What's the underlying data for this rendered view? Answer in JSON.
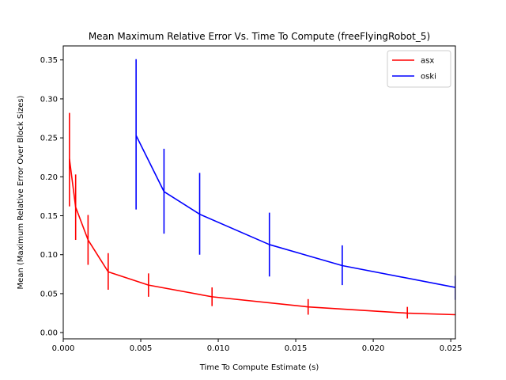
{
  "chart_data": {
    "type": "line",
    "title": "Mean Maximum Relative Error Vs. Time To Compute (freeFlyingRobot_5)",
    "xlabel": "Time To Compute Estimate (s)",
    "ylabel": "Mean (Maximum Relative Error Over Block Sizes)",
    "xlim": [
      0.0,
      0.0253
    ],
    "ylim": [
      -0.008,
      0.368
    ],
    "xticks": [
      0.0,
      0.005,
      0.01,
      0.015,
      0.02,
      0.025
    ],
    "xtick_labels": [
      "0.000",
      "0.005",
      "0.010",
      "0.015",
      "0.020",
      "0.025"
    ],
    "yticks": [
      0.0,
      0.05,
      0.1,
      0.15,
      0.2,
      0.25,
      0.3,
      0.35
    ],
    "ytick_labels": [
      "0.00",
      "0.05",
      "0.10",
      "0.15",
      "0.20",
      "0.25",
      "0.30",
      "0.35"
    ],
    "grid": false,
    "legend_position": "top-right",
    "series": [
      {
        "name": "asx",
        "color": "#ff0000",
        "x": [
          0.0004,
          0.0008,
          0.0016,
          0.0029,
          0.0055,
          0.0096,
          0.0158,
          0.0222,
          0.0253
        ],
        "y": [
          0.223,
          0.161,
          0.119,
          0.078,
          0.061,
          0.046,
          0.033,
          0.025,
          0.023
        ],
        "err_low": [
          0.162,
          0.119,
          0.087,
          0.055,
          0.046,
          0.034,
          0.023,
          0.018,
          null
        ],
        "err_high": [
          0.282,
          0.203,
          0.151,
          0.102,
          0.076,
          0.058,
          0.043,
          0.033,
          null
        ]
      },
      {
        "name": "oski",
        "color": "#0000ff",
        "x": [
          0.0047,
          0.0065,
          0.0088,
          0.0133,
          0.018,
          0.0253
        ],
        "y": [
          0.253,
          0.181,
          0.152,
          0.113,
          0.086,
          0.058
        ],
        "err_low": [
          0.158,
          0.127,
          0.1,
          0.072,
          0.061,
          0.042
        ],
        "err_high": [
          0.351,
          0.236,
          0.205,
          0.154,
          0.112,
          0.073
        ]
      }
    ]
  }
}
